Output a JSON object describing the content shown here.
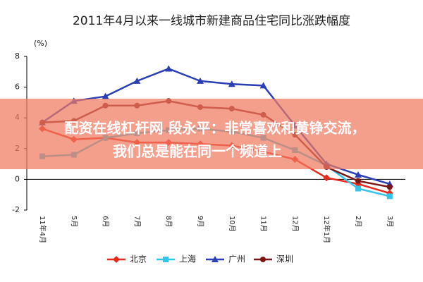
{
  "chart_data": {
    "type": "line",
    "title": "2011年4月以来一线城市新建商品住宅同比涨跌幅度",
    "y_label": "(%)",
    "categories": [
      "11年4月",
      "5月",
      "6月",
      "7月",
      "8月",
      "9月",
      "10月",
      "11月",
      "12月",
      "12年1月",
      "2月",
      "3月"
    ],
    "series": [
      {
        "name": "北京",
        "color": "#e8291c",
        "marker": "diamond",
        "values": [
          3.3,
          2.6,
          2.7,
          2.4,
          2.4,
          2.3,
          2.2,
          1.8,
          1.3,
          0.1,
          -0.3,
          -0.9
        ]
      },
      {
        "name": "上海",
        "color": "#33c4e8",
        "marker": "square",
        "values": [
          1.5,
          1.6,
          2.7,
          3.0,
          3.2,
          3.3,
          3.1,
          2.7,
          1.9,
          0.9,
          -0.6,
          -1.1
        ]
      },
      {
        "name": "广州",
        "color": "#2a3fb5",
        "marker": "triangle",
        "values": [
          3.7,
          5.1,
          5.4,
          6.4,
          7.2,
          6.4,
          6.2,
          6.1,
          3.5,
          1.0,
          0.3,
          -0.3
        ]
      },
      {
        "name": "深圳",
        "color": "#7a1616",
        "marker": "circle",
        "values": [
          3.7,
          3.8,
          4.8,
          4.8,
          5.1,
          4.7,
          4.6,
          4.2,
          2.9,
          0.8,
          -0.1,
          -0.5
        ]
      }
    ],
    "ylim": [
      -2,
      8
    ],
    "yticks": [
      -2,
      0,
      2,
      4,
      6,
      8
    ],
    "grid": false,
    "legend": "bottom"
  },
  "overlay": {
    "lines": [
      "配资在线杠杆网 段永平：非常喜欢和黄铮交流，",
      "我们总是能在同一个频道上"
    ]
  }
}
